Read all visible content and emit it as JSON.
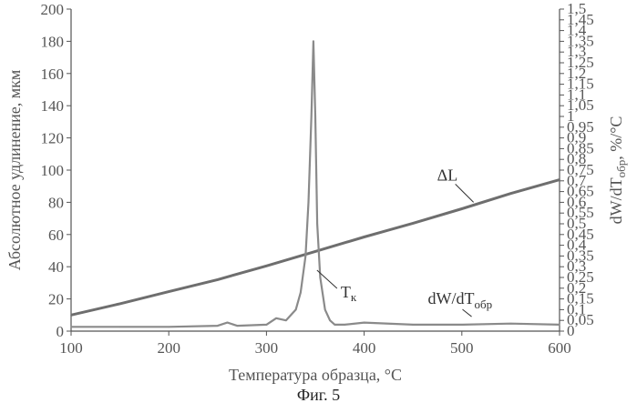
{
  "chart_data": {
    "type": "line",
    "xlabel": "Температура образца, °C",
    "ylabel_left": "Абсолютное удлинение, мкм",
    "ylabel_right": "dW/dT",
    "ylabel_right_sub": "обр",
    "ylabel_right_unit": ", %/°C",
    "xlim": [
      100,
      600
    ],
    "ylim_left": [
      0,
      200
    ],
    "ylim_right": [
      0,
      1.5
    ],
    "x_ticks": [
      "100",
      "200",
      "300",
      "400",
      "500",
      "600"
    ],
    "y_left_ticks": [
      "0",
      "20",
      "40",
      "60",
      "80",
      "100",
      "120",
      "140",
      "160",
      "180",
      "200"
    ],
    "y_right_ticks": [
      "0",
      "0,05",
      "0,1",
      "0,15",
      "0,2",
      "0,25",
      "0,3",
      "0,35",
      "0,4",
      "0,45",
      "0,5",
      "0,55",
      "0,6",
      "0,65",
      "0,7",
      "0,75",
      "0,8",
      "0,85",
      "0,9",
      "0,95",
      "1",
      "1,05",
      "1,1",
      "1,15",
      "1,2",
      "1,25",
      "1,3",
      "1,35",
      "1,4",
      "1,45",
      "1,5"
    ],
    "series": [
      {
        "name": "ΔL",
        "axis": "left",
        "color": "#6e6e6e",
        "x": [
          100,
          150,
          200,
          250,
          300,
          350,
          400,
          450,
          500,
          550,
          600
        ],
        "y": [
          10,
          17,
          24.5,
          32,
          40.5,
          49.5,
          58.5,
          67,
          76,
          85.5,
          94
        ]
      },
      {
        "name": "dW/dTобр",
        "axis": "right",
        "color": "#8a8a8a",
        "x": [
          100,
          150,
          200,
          250,
          260,
          270,
          300,
          310,
          320,
          330,
          335,
          340,
          343,
          346,
          348,
          350,
          352,
          355,
          360,
          365,
          370,
          380,
          400,
          450,
          500,
          550,
          600
        ],
        "y": [
          0.02,
          0.02,
          0.02,
          0.025,
          0.04,
          0.025,
          0.03,
          0.06,
          0.05,
          0.1,
          0.18,
          0.35,
          0.6,
          1.0,
          1.35,
          1.0,
          0.5,
          0.25,
          0.1,
          0.05,
          0.03,
          0.03,
          0.04,
          0.03,
          0.03,
          0.035,
          0.03
        ]
      }
    ],
    "annotations": [
      {
        "label": "ΔL",
        "x": 512,
        "y_left": 80
      },
      {
        "label": "dW/dT",
        "sub": "обр",
        "x": 510,
        "y_left": 9
      },
      {
        "label": "T",
        "sub": "к",
        "x": 348,
        "y_left": 39
      }
    ],
    "grid": false,
    "legend": "none"
  },
  "caption": "Фиг. 5"
}
